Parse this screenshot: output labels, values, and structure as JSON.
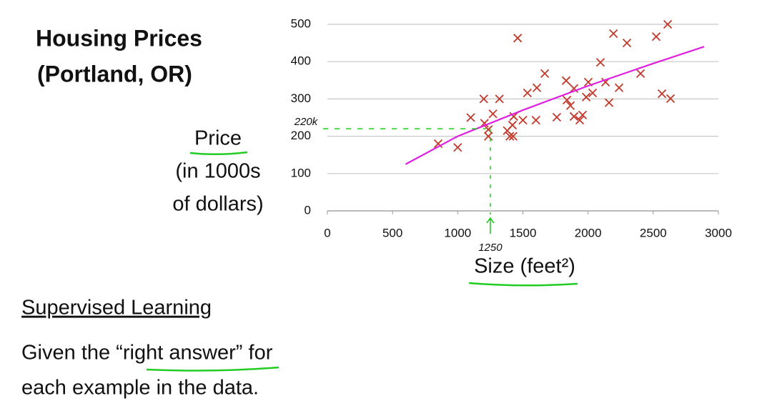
{
  "chart_data": {
    "type": "scatter",
    "title": [
      "Housing Prices",
      "(Portland, OR)"
    ],
    "ylabel": [
      "Price",
      "(in 1000s",
      "of dollars)"
    ],
    "xlabel": "Size (feet²)",
    "points": {
      "color": "#c0392b",
      "x": [
        850,
        1000,
        1100,
        1200,
        1205,
        1235,
        1235,
        1270,
        1320,
        1380,
        1400,
        1420,
        1425,
        1430,
        1460,
        1500,
        1535,
        1607,
        1600,
        1668,
        1760,
        1832,
        1838,
        1865,
        1892,
        1892,
        1936,
        1958,
        1986,
        2002,
        2035,
        2095,
        2134,
        2161,
        2195,
        2238,
        2298,
        2403,
        2523,
        2567,
        2611,
        2633
      ],
      "y": [
        180,
        170,
        250,
        300,
        235,
        218,
        200,
        260,
        300,
        215,
        200,
        230,
        200,
        253,
        463,
        243,
        316,
        330,
        243,
        368,
        251,
        349,
        297,
        282,
        328,
        253,
        243,
        257,
        305,
        345,
        316,
        398,
        345,
        290,
        475,
        330,
        450,
        368,
        467,
        314,
        500,
        301
      ]
    },
    "curve": {
      "color": "#e020e0",
      "x": [
        600,
        1000,
        1500,
        2000,
        2500,
        2890
      ],
      "y": [
        125,
        200,
        270,
        335,
        395,
        440
      ]
    },
    "annotations": [
      {
        "label": "220k",
        "y": 220
      },
      {
        "label": "1250",
        "x": 1250
      }
    ],
    "annotation_color": "#22cc22",
    "xlim": [
      0,
      3000
    ],
    "xticks": [
      0,
      500,
      1000,
      1500,
      2000,
      2500,
      3000
    ],
    "ylim": [
      0,
      500
    ],
    "yticks": [
      0,
      100,
      200,
      300,
      400,
      500
    ],
    "grid": true
  },
  "slide": {
    "heading": "Supervised Learning",
    "text": [
      "Given the “right answer” for",
      "each example in the data."
    ]
  }
}
